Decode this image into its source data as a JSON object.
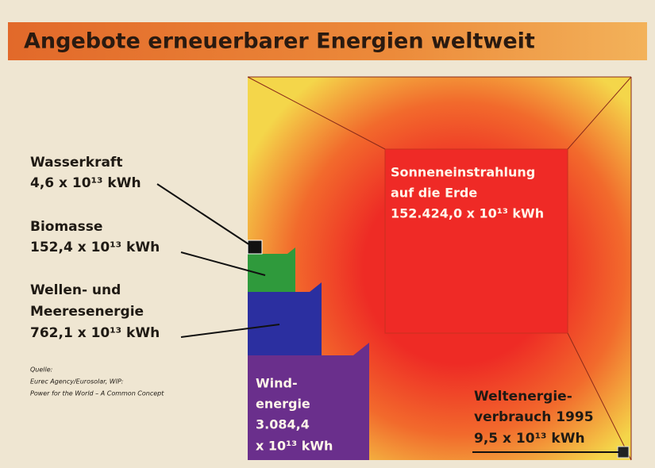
{
  "title": "Angebote erneuerbarer Energien weltweit",
  "wasserkraft": [
    "Wasserkraft",
    "4,6 x 10¹³ kWh"
  ],
  "biomasse": [
    "Biomasse",
    "152,4 x 10¹³ kWh"
  ],
  "wellen": [
    "Wellen- und",
    "Meeresenergie",
    "762,1 x 10¹³ kWh"
  ],
  "quelle": [
    "Quelle:",
    "Eurec Agency/Eurosolar, WIP:",
    "Power for the World – A Common Concept"
  ],
  "sonne": [
    "Sonneneinstrahlung",
    "auf die Erde",
    "152.424,0 x 10¹³ kWh"
  ],
  "wind": [
    "Wind-",
    "energie",
    "3.084,4",
    "x 10¹³ kWh"
  ],
  "verbrauch": [
    "Weltenergie-",
    "verbrauch 1995",
    "9,5 x 10¹³ kWh"
  ]
}
